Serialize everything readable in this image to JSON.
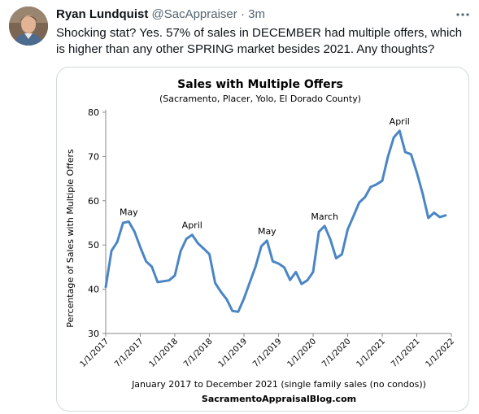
{
  "tweet": {
    "author_name": "Ryan Lundquist",
    "handle": "@SacAppraiser",
    "separator": "·",
    "time": "3m",
    "more_icon": "more-icon",
    "text": "Shocking stat? Yes. 57% of sales in DECEMBER had multiple offers, which is higher than any other SPRING market besides 2021. Any thoughts?"
  },
  "chart_data": {
    "type": "line",
    "title": "Sales with Multiple Offers",
    "subtitle": "(Sacramento, Placer, Yolo, El Dorado County)",
    "ylabel": "Percentage of Sales with  Multiple Offers",
    "xlabel": "January 2017 to December 2021 (single family sales (no condos))",
    "footer": "SacramentoAppraisalBlog.com",
    "ylim": [
      30,
      80
    ],
    "yticks": [
      30,
      40,
      50,
      60,
      70,
      80
    ],
    "xticks": [
      "1/1/2017",
      "7/1/2017",
      "1/1/2018",
      "7/1/2018",
      "1/1/2019",
      "7/1/2019",
      "1/1/2020",
      "7/1/2020",
      "1/1/2021",
      "7/1/2021",
      "1/1/2022"
    ],
    "grid": false,
    "series": [
      {
        "color": "#4a86c5",
        "x": [
          "2017-01",
          "2017-02",
          "2017-03",
          "2017-04",
          "2017-05",
          "2017-06",
          "2017-07",
          "2017-08",
          "2017-09",
          "2017-10",
          "2017-11",
          "2017-12",
          "2018-01",
          "2018-02",
          "2018-03",
          "2018-04",
          "2018-05",
          "2018-06",
          "2018-07",
          "2018-08",
          "2018-09",
          "2018-10",
          "2018-11",
          "2018-12",
          "2019-01",
          "2019-02",
          "2019-03",
          "2019-04",
          "2019-05",
          "2019-06",
          "2019-07",
          "2019-08",
          "2019-09",
          "2019-10",
          "2019-11",
          "2019-12",
          "2020-01",
          "2020-02",
          "2020-03",
          "2020-04",
          "2020-05",
          "2020-06",
          "2020-07",
          "2020-08",
          "2020-09",
          "2020-10",
          "2020-11",
          "2020-12",
          "2021-01",
          "2021-02",
          "2021-03",
          "2021-04",
          "2021-05",
          "2021-06",
          "2021-07",
          "2021-08",
          "2021-09",
          "2021-10",
          "2021-11",
          "2021-12"
        ],
        "y": [
          40.5,
          48.7,
          50.7,
          55.0,
          55.3,
          53.0,
          49.5,
          46.3,
          45.1,
          41.6,
          41.8,
          42.0,
          43.1,
          48.6,
          51.4,
          52.3,
          50.4,
          49.2,
          47.9,
          41.4,
          39.4,
          37.7,
          35.1,
          34.9,
          37.9,
          41.5,
          45.1,
          49.7,
          51.0,
          46.3,
          45.8,
          44.9,
          42.1,
          43.9,
          41.2,
          42.0,
          43.9,
          53.0,
          54.3,
          51.2,
          47.0,
          47.9,
          53.5,
          56.5,
          59.6,
          60.8,
          63.1,
          63.7,
          64.5,
          70.0,
          74.3,
          75.8,
          71.0,
          70.5,
          66.4,
          61.7,
          56.1,
          57.3,
          56.3,
          56.7
        ]
      }
    ],
    "annotations": [
      {
        "text": "May",
        "x": "2017-05",
        "y": 55.3
      },
      {
        "text": "April",
        "x": "2018-04",
        "y": 52.3
      },
      {
        "text": "May",
        "x": "2019-05",
        "y": 51.0
      },
      {
        "text": "March",
        "x": "2020-03",
        "y": 54.3
      },
      {
        "text": "April",
        "x": "2021-04",
        "y": 75.8
      }
    ]
  }
}
